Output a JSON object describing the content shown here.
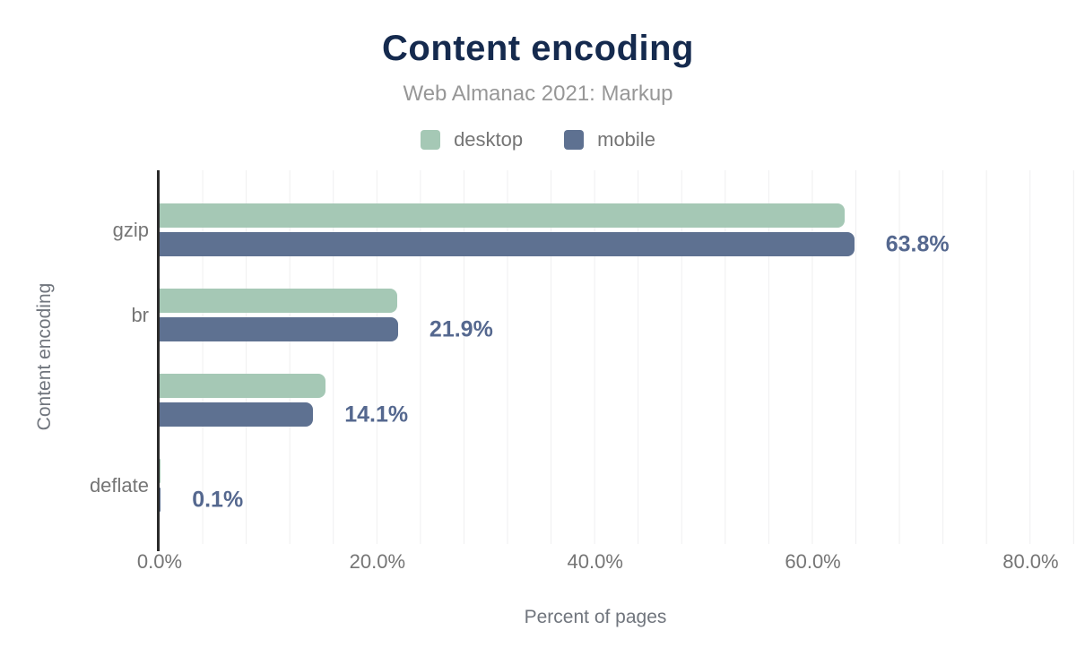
{
  "header": {
    "title": "Content encoding",
    "subtitle": "Web Almanac 2021: Markup"
  },
  "legend": [
    {
      "label": "desktop",
      "color": "#a5c8b5"
    },
    {
      "label": "mobile",
      "color": "#5e7191"
    }
  ],
  "chart_data": {
    "type": "bar",
    "orientation": "horizontal",
    "title": "Content encoding",
    "subtitle": "Web Almanac 2021: Markup",
    "xlabel": "Percent of pages",
    "ylabel": "Content encoding",
    "categories": [
      "gzip",
      "br",
      "",
      "deflate"
    ],
    "series": [
      {
        "name": "desktop",
        "color": "#a5c8b5",
        "values": [
          62.9,
          21.8,
          15.2,
          0.1
        ]
      },
      {
        "name": "mobile",
        "color": "#5e7191",
        "values": [
          63.8,
          21.9,
          14.1,
          0.1
        ]
      }
    ],
    "value_labels": [
      "63.8%",
      "21.9%",
      "14.1%",
      "0.1%"
    ],
    "value_labels_series": "mobile",
    "x_ticks": [
      "0.0%",
      "20.0%",
      "40.0%",
      "60.0%",
      "80.0%"
    ],
    "x_tick_values": [
      0,
      20,
      40,
      60,
      80
    ],
    "xlim": [
      0,
      84
    ],
    "grid": {
      "vertical_minor_step_percent": 4,
      "color": "#efeff0",
      "horizontal": false
    },
    "legend_position": "top",
    "colors": {
      "title": "#152a4e",
      "subtitle": "#979797",
      "tick_text": "#757575",
      "axis_title_text": "#70757d",
      "value_label_text": "#55688f",
      "axis_line": "#2b2b2b"
    }
  }
}
